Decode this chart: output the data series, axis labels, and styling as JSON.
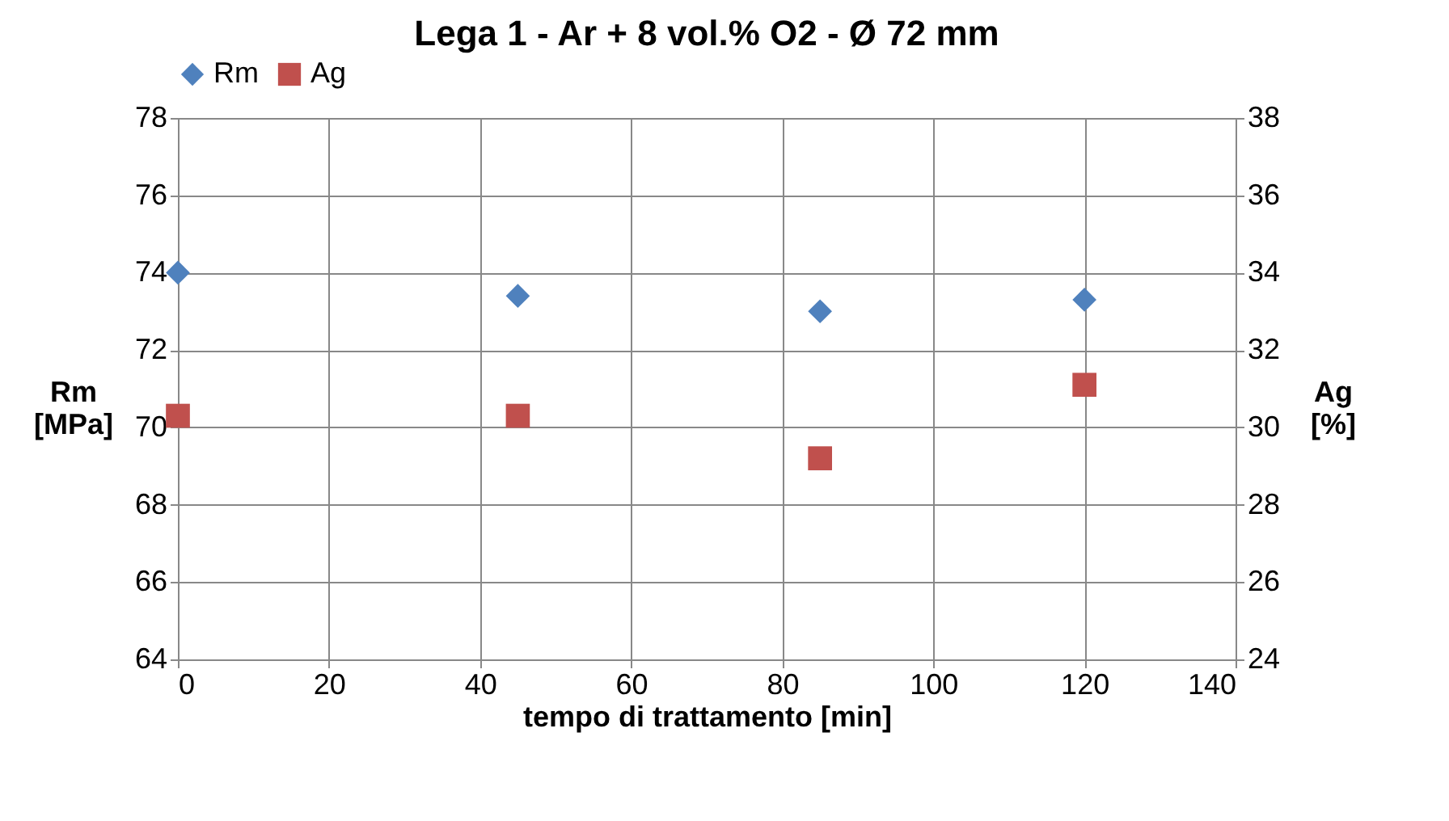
{
  "chart_data": {
    "type": "scatter",
    "title": "Lega 1 - Ar + 8 vol.% O2 - Ø 72 mm",
    "xlabel": "tempo di trattamento [min]",
    "ylabel": "Rm [MPa]",
    "y2label": "Ag [%]",
    "x": [
      0,
      45,
      85,
      120
    ],
    "series": [
      {
        "name": "Rm",
        "color": "#4f81bd",
        "marker": "diamond",
        "values": [
          74,
          73.4,
          73,
          73.3
        ]
      },
      {
        "name": "Ag",
        "color": "#c0504d",
        "marker": "square",
        "axis": "y2",
        "values": [
          30.3,
          30.3,
          29.2,
          31.1
        ]
      }
    ],
    "xlim": [
      0,
      140
    ],
    "xticks": [
      0,
      20,
      40,
      60,
      80,
      100,
      120,
      140
    ],
    "ylim": [
      64,
      78
    ],
    "yticks": [
      64,
      66,
      68,
      70,
      72,
      74,
      76,
      78
    ],
    "y2lim": [
      24,
      38
    ],
    "y2ticks": [
      24,
      26,
      28,
      30,
      32,
      34,
      36,
      38
    ],
    "grid": true,
    "legend": "top"
  }
}
